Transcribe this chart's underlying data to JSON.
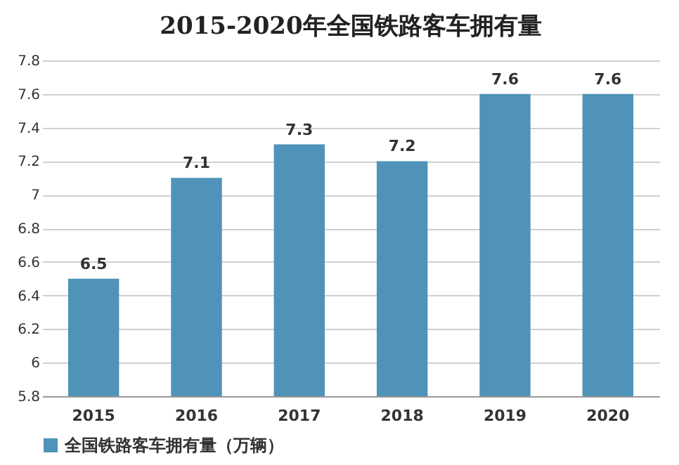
{
  "chart_data": {
    "type": "bar",
    "title": "2015-2020年全国铁路客车拥有量",
    "categories": [
      "2015",
      "2016",
      "2017",
      "2018",
      "2019",
      "2020"
    ],
    "series": [
      {
        "name": "全国铁路客车拥有量（万辆）",
        "color": "#4f93b8",
        "values": [
          6.5,
          7.1,
          7.3,
          7.2,
          7.6,
          7.6
        ]
      }
    ],
    "ylim": [
      5.8,
      7.8
    ],
    "yticks": [
      5.8,
      6,
      6.2,
      6.4,
      6.6,
      6.8,
      7,
      7.2,
      7.4,
      7.6,
      7.8
    ],
    "grid": "y",
    "legend": "bottom",
    "data_labels": true
  }
}
